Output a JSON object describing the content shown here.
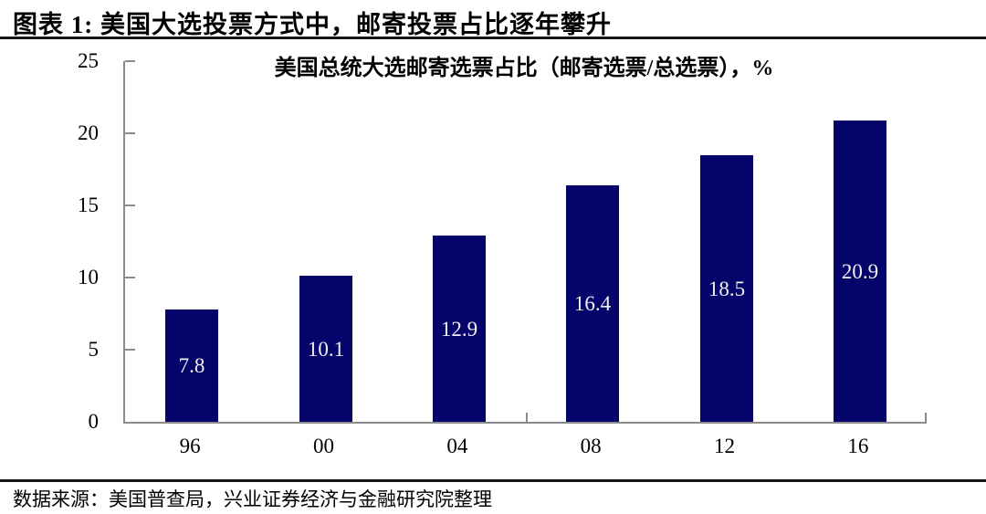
{
  "header": {
    "figure_title": "图表 1: 美国大选投票方式中，邮寄投票占比逐年攀升"
  },
  "footer": {
    "source_note": "数据来源：美国普查局，兴业证券经济与金融研究院整理"
  },
  "chart_data": {
    "type": "bar",
    "title": "美国总统大选邮寄选票占比（邮寄选票/总选票），%",
    "categories": [
      "96",
      "00",
      "04",
      "08",
      "12",
      "16"
    ],
    "values": [
      7.8,
      10.1,
      12.9,
      16.4,
      18.5,
      20.9
    ],
    "xlabel": "",
    "ylabel": "",
    "ylim": [
      0,
      25
    ],
    "ytick_step": 5,
    "grid": false,
    "legend_position": "none",
    "data_labels": "inside-center",
    "colors": {
      "bar": "#04046a",
      "bar_label": "#f0f0f0",
      "axis": "#8a8a8a",
      "text": "#000000",
      "rule": "#161616"
    }
  }
}
